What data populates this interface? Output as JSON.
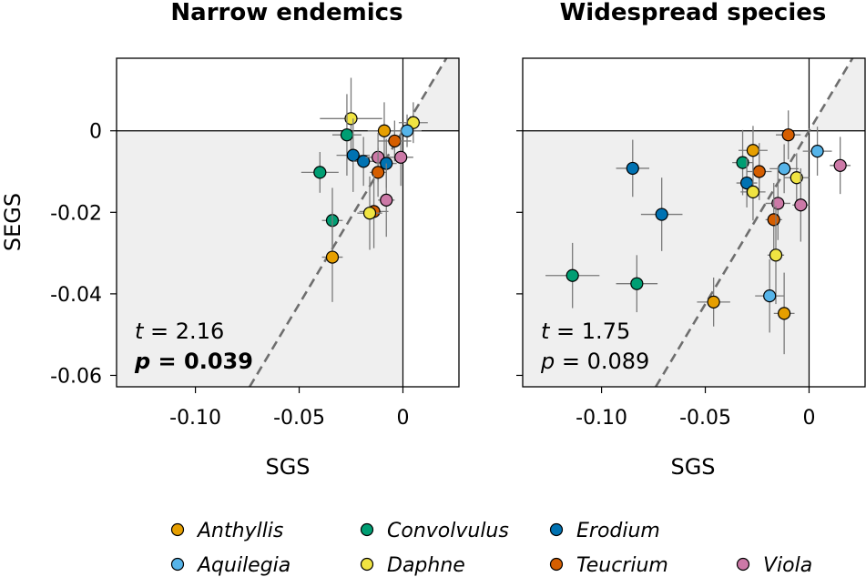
{
  "chart_data": {
    "type": "scatter",
    "xlabel": "SGS",
    "ylabel": "SEGS",
    "xlim": [
      -0.138,
      0.027
    ],
    "ylim": [
      -0.0628,
      0.0178
    ],
    "xticks": [
      {
        "v": -0.1,
        "label": "-0.10"
      },
      {
        "v": -0.05,
        "label": "-0.05"
      },
      {
        "v": 0,
        "label": "0"
      }
    ],
    "yticks": [
      {
        "v": 0,
        "label": "0"
      },
      {
        "v": -0.02,
        "label": "-0.02"
      },
      {
        "v": -0.04,
        "label": "-0.04"
      },
      {
        "v": -0.06,
        "label": "-0.06"
      }
    ],
    "groups": [
      {
        "name": "Anthyllis",
        "color": "#E69F00"
      },
      {
        "name": "Aquilegia",
        "color": "#56B4E9"
      },
      {
        "name": "Convolvulus",
        "color": "#009E73"
      },
      {
        "name": "Daphne",
        "color": "#F0E442"
      },
      {
        "name": "Erodium",
        "color": "#0072B2"
      },
      {
        "name": "Teucrium",
        "color": "#D55E00"
      },
      {
        "name": "Viola",
        "color": "#CC79A7"
      }
    ],
    "panels": [
      {
        "title": "Narrow endemics",
        "t_label": "t",
        "t_value": "= 2.16",
        "p_label": "p",
        "p_value": "= 0.039",
        "p_bold": true,
        "reference_line_slope": 0.85,
        "points": [
          {
            "g": "Daphne",
            "x": -0.025,
            "y": 0.003,
            "xerr": 0.015,
            "yerr": 0.01
          },
          {
            "g": "Daphne",
            "x": 0.005,
            "y": 0.002,
            "xerr": 0.007,
            "yerr": 0.005
          },
          {
            "g": "Anthyllis",
            "x": -0.009,
            "y": 0.0,
            "xerr": 0.008,
            "yerr": 0.007
          },
          {
            "g": "Aquilegia",
            "x": 0.002,
            "y": 0.0,
            "xerr": 0.007,
            "yerr": 0.004
          },
          {
            "g": "Convolvulus",
            "x": -0.027,
            "y": -0.001,
            "xerr": 0.007,
            "yerr": 0.01
          },
          {
            "g": "Teucrium",
            "x": -0.004,
            "y": -0.0025,
            "xerr": 0.008,
            "yerr": 0.005
          },
          {
            "g": "Erodium",
            "x": -0.024,
            "y": -0.006,
            "xerr": 0.008,
            "yerr": 0.009
          },
          {
            "g": "Erodium",
            "x": -0.019,
            "y": -0.0075,
            "xerr": 0.005,
            "yerr": 0.006
          },
          {
            "g": "Viola",
            "x": -0.012,
            "y": -0.0065,
            "xerr": 0.006,
            "yerr": 0.006
          },
          {
            "g": "Viola",
            "x": -0.001,
            "y": -0.0065,
            "xerr": 0.006,
            "yerr": 0.007
          },
          {
            "g": "Erodium",
            "x": -0.008,
            "y": -0.008,
            "xerr": 0.005,
            "yerr": 0.006
          },
          {
            "g": "Convolvulus",
            "x": -0.04,
            "y": -0.0102,
            "xerr": 0.009,
            "yerr": 0.005
          },
          {
            "g": "Teucrium",
            "x": -0.012,
            "y": -0.0102,
            "xerr": 0.004,
            "yerr": 0.006
          },
          {
            "g": "Viola",
            "x": -0.008,
            "y": -0.017,
            "xerr": 0.004,
            "yerr": 0.009
          },
          {
            "g": "Teucrium",
            "x": -0.014,
            "y": -0.0198,
            "xerr": 0.007,
            "yerr": 0.009
          },
          {
            "g": "Daphne",
            "x": -0.016,
            "y": -0.0202,
            "xerr": 0.006,
            "yerr": 0.009
          },
          {
            "g": "Convolvulus",
            "x": -0.034,
            "y": -0.022,
            "xerr": 0.005,
            "yerr": 0.008
          },
          {
            "g": "Anthyllis",
            "x": -0.034,
            "y": -0.031,
            "xerr": 0.005,
            "yerr": 0.011
          }
        ]
      },
      {
        "title": "Widespread species",
        "t_label": "t",
        "t_value": "= 1.75",
        "p_label": "p",
        "p_value": "= 0.089",
        "p_bold": false,
        "reference_line_slope": 0.85,
        "points": [
          {
            "g": "Teucrium",
            "x": -0.01,
            "y": -0.001,
            "xerr": 0.006,
            "yerr": 0.006
          },
          {
            "g": "Aquilegia",
            "x": 0.004,
            "y": -0.005,
            "xerr": 0.007,
            "yerr": 0.006
          },
          {
            "g": "Anthyllis",
            "x": -0.027,
            "y": -0.0048,
            "xerr": 0.007,
            "yerr": 0.006
          },
          {
            "g": "Convolvulus",
            "x": -0.032,
            "y": -0.0078,
            "xerr": 0.005,
            "yerr": 0.008
          },
          {
            "g": "Viola",
            "x": 0.015,
            "y": -0.0085,
            "xerr": 0.005,
            "yerr": 0.007
          },
          {
            "g": "Erodium",
            "x": -0.085,
            "y": -0.0092,
            "xerr": 0.008,
            "yerr": 0.007
          },
          {
            "g": "Aquilegia",
            "x": -0.012,
            "y": -0.0093,
            "xerr": 0.007,
            "yerr": 0.006
          },
          {
            "g": "Teucrium",
            "x": -0.024,
            "y": -0.01,
            "xerr": 0.006,
            "yerr": 0.007
          },
          {
            "g": "Daphne",
            "x": -0.006,
            "y": -0.0115,
            "xerr": 0.006,
            "yerr": 0.006
          },
          {
            "g": "Erodium",
            "x": -0.03,
            "y": -0.0128,
            "xerr": 0.005,
            "yerr": 0.006
          },
          {
            "g": "Daphne",
            "x": -0.027,
            "y": -0.015,
            "xerr": 0.006,
            "yerr": 0.007
          },
          {
            "g": "Viola",
            "x": -0.015,
            "y": -0.0178,
            "xerr": 0.006,
            "yerr": 0.009
          },
          {
            "g": "Viola",
            "x": -0.004,
            "y": -0.0182,
            "xerr": 0.004,
            "yerr": 0.009
          },
          {
            "g": "Erodium",
            "x": -0.071,
            "y": -0.0205,
            "xerr": 0.01,
            "yerr": 0.009
          },
          {
            "g": "Teucrium",
            "x": -0.017,
            "y": -0.0218,
            "xerr": 0.004,
            "yerr": 0.009
          },
          {
            "g": "Daphne",
            "x": -0.016,
            "y": -0.0305,
            "xerr": 0.004,
            "yerr": 0.012
          },
          {
            "g": "Convolvulus",
            "x": -0.114,
            "y": -0.0355,
            "xerr": 0.013,
            "yerr": 0.008
          },
          {
            "g": "Convolvulus",
            "x": -0.083,
            "y": -0.0375,
            "xerr": 0.01,
            "yerr": 0.007
          },
          {
            "g": "Aquilegia",
            "x": -0.019,
            "y": -0.0405,
            "xerr": 0.007,
            "yerr": 0.009
          },
          {
            "g": "Anthyllis",
            "x": -0.046,
            "y": -0.042,
            "xerr": 0.008,
            "yerr": 0.006
          },
          {
            "g": "Anthyllis",
            "x": -0.012,
            "y": -0.0448,
            "xerr": 0.005,
            "yerr": 0.01
          }
        ]
      }
    ],
    "legend": {
      "placement": "bottom",
      "entries": [
        "Anthyllis",
        "Aquilegia",
        "Convolvulus",
        "Daphne",
        "Erodium",
        "Teucrium",
        "Viola"
      ]
    }
  }
}
